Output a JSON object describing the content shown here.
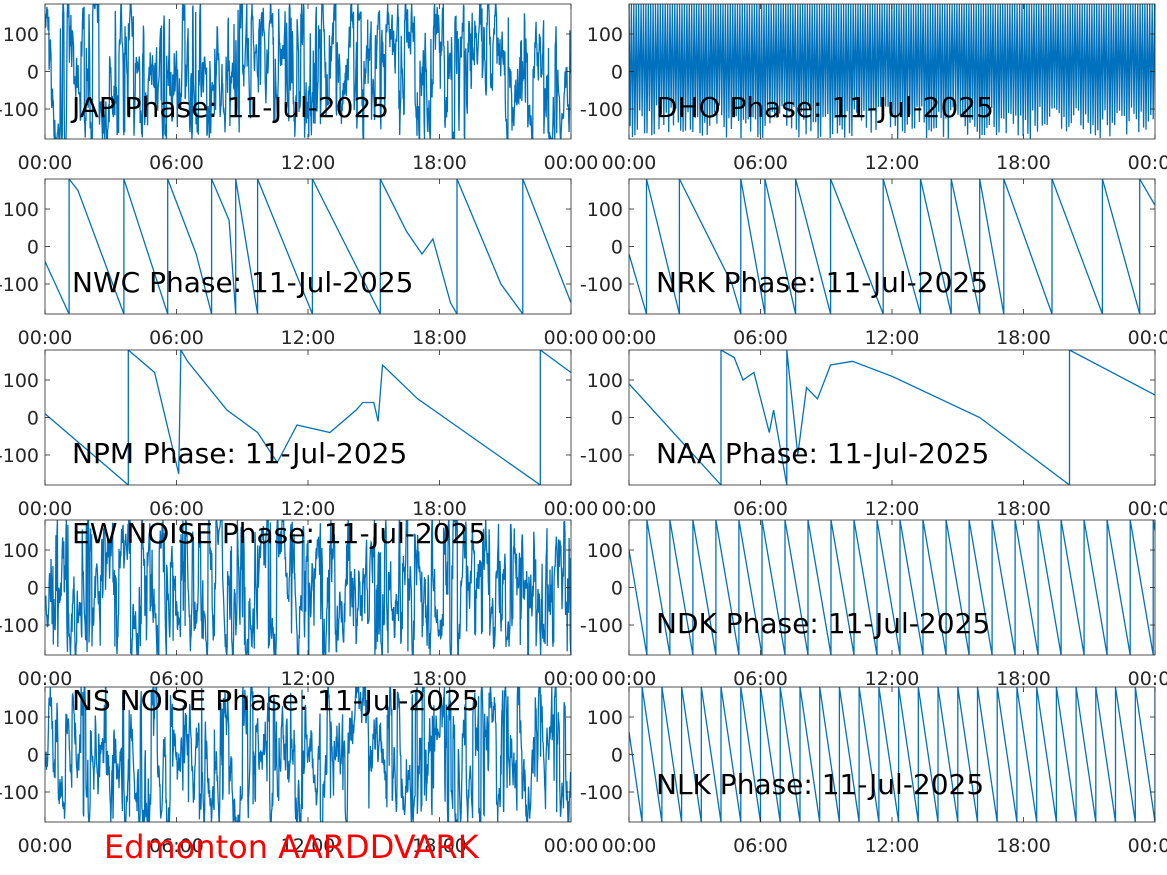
{
  "figure": {
    "footer_text": "Edmonton AARDDVARK",
    "footer_color": "#ff0000",
    "line_color": "#0072bd"
  },
  "chart_data": [
    {
      "type": "line",
      "title": "JAP Phase: 11-Jul-2025",
      "x_ticks": [
        "00:00",
        "06:00",
        "12:00",
        "18:00",
        "00:00"
      ],
      "y_ticks": [
        "100",
        "0",
        "-100"
      ],
      "ylim": [
        -180,
        180
      ],
      "xlim_hours": [
        0,
        24
      ],
      "pattern": "noise",
      "density": 1.0
    },
    {
      "type": "line",
      "title": "DHO Phase: 11-Jul-2025",
      "x_ticks": [
        "00:00",
        "06:00",
        "12:00",
        "18:00",
        "00:00"
      ],
      "y_ticks": [
        "100",
        "0",
        "-100"
      ],
      "ylim": [
        -180,
        180
      ],
      "xlim_hours": [
        0,
        24
      ],
      "pattern": "fast-wrap",
      "density": 1.0
    },
    {
      "type": "line",
      "title": "NWC Phase: 11-Jul-2025",
      "x_ticks": [
        "00:00",
        "06:00",
        "12:00",
        "18:00",
        "00:00"
      ],
      "y_ticks": [
        "100",
        "0",
        "-100"
      ],
      "ylim": [
        -180,
        180
      ],
      "xlim_hours": [
        0,
        24
      ],
      "points": [
        [
          0,
          -40
        ],
        [
          1.1,
          -180
        ],
        [
          1.1,
          180
        ],
        [
          1.5,
          150
        ],
        [
          3.6,
          -180
        ],
        [
          3.6,
          180
        ],
        [
          5.6,
          -180
        ],
        [
          5.6,
          180
        ],
        [
          6.9,
          -20
        ],
        [
          7.6,
          -180
        ],
        [
          7.6,
          180
        ],
        [
          8.4,
          70
        ],
        [
          8.7,
          -180
        ],
        [
          8.7,
          180
        ],
        [
          9.7,
          -180
        ],
        [
          9.7,
          180
        ],
        [
          12.2,
          -180
        ],
        [
          12.2,
          180
        ],
        [
          15.3,
          -180
        ],
        [
          15.3,
          180
        ],
        [
          16.5,
          40
        ],
        [
          17.2,
          -20
        ],
        [
          17.7,
          20
        ],
        [
          18.5,
          -150
        ],
        [
          18.8,
          -180
        ],
        [
          18.8,
          180
        ],
        [
          20.8,
          -100
        ],
        [
          21.8,
          -180
        ],
        [
          21.8,
          180
        ],
        [
          24,
          -150
        ]
      ]
    },
    {
      "type": "line",
      "title": "NRK Phase: 11-Jul-2025",
      "x_ticks": [
        "00:00",
        "06:00",
        "12:00",
        "18:00",
        "00:00"
      ],
      "y_ticks": [
        "100",
        "0",
        "-100"
      ],
      "ylim": [
        -180,
        180
      ],
      "xlim_hours": [
        0,
        24
      ],
      "points": [
        [
          0,
          -20
        ],
        [
          0.8,
          -180
        ],
        [
          0.8,
          180
        ],
        [
          2.3,
          -180
        ],
        [
          2.3,
          180
        ],
        [
          4.7,
          -100
        ],
        [
          5.1,
          -180
        ],
        [
          5.1,
          180
        ],
        [
          6.2,
          -180
        ],
        [
          6.2,
          180
        ],
        [
          7.6,
          -180
        ],
        [
          7.6,
          180
        ],
        [
          9.2,
          -180
        ],
        [
          9.2,
          180
        ],
        [
          11.6,
          -180
        ],
        [
          11.6,
          180
        ],
        [
          13.3,
          -180
        ],
        [
          13.3,
          180
        ],
        [
          14.7,
          -180
        ],
        [
          14.7,
          180
        ],
        [
          16.0,
          -180
        ],
        [
          16.0,
          180
        ],
        [
          17.1,
          -180
        ],
        [
          17.1,
          180
        ],
        [
          19.3,
          -180
        ],
        [
          19.3,
          180
        ],
        [
          21.6,
          -180
        ],
        [
          21.6,
          180
        ],
        [
          23.3,
          -180
        ],
        [
          23.3,
          180
        ],
        [
          24,
          110
        ]
      ]
    },
    {
      "type": "line",
      "title": "NPM Phase: 11-Jul-2025",
      "x_ticks": [
        "00:00",
        "06:00",
        "12:00",
        "18:00",
        "00:00"
      ],
      "y_ticks": [
        "100",
        "0",
        "-100"
      ],
      "ylim": [
        -180,
        180
      ],
      "xlim_hours": [
        0,
        24
      ],
      "points": [
        [
          0,
          10
        ],
        [
          3.8,
          -180
        ],
        [
          3.8,
          180
        ],
        [
          5,
          120
        ],
        [
          6.1,
          -150
        ],
        [
          6.2,
          180
        ],
        [
          6.5,
          150
        ],
        [
          8.3,
          20
        ],
        [
          9.7,
          -40
        ],
        [
          10.6,
          -120
        ],
        [
          11.5,
          -20
        ],
        [
          13,
          -40
        ],
        [
          14.2,
          20
        ],
        [
          14.5,
          40
        ],
        [
          15,
          40
        ],
        [
          15.2,
          -10
        ],
        [
          15.4,
          140
        ],
        [
          17,
          50
        ],
        [
          22.6,
          -180
        ],
        [
          22.6,
          180
        ],
        [
          24,
          120
        ]
      ]
    },
    {
      "type": "line",
      "title": "NAA Phase: 11-Jul-2025",
      "x_ticks": [
        "00:00",
        "06:00",
        "12:00",
        "18:00",
        "00:00"
      ],
      "y_ticks": [
        "100",
        "0",
        "-100"
      ],
      "ylim": [
        -180,
        180
      ],
      "xlim_hours": [
        0,
        24
      ],
      "points": [
        [
          0,
          90
        ],
        [
          4.2,
          -180
        ],
        [
          4.2,
          180
        ],
        [
          4.8,
          160
        ],
        [
          5.2,
          100
        ],
        [
          5.7,
          120
        ],
        [
          6.4,
          -40
        ],
        [
          6.6,
          20
        ],
        [
          7.2,
          -180
        ],
        [
          7.2,
          180
        ],
        [
          7.7,
          -100
        ],
        [
          8.1,
          80
        ],
        [
          8.6,
          50
        ],
        [
          9.2,
          140
        ],
        [
          10.2,
          150
        ],
        [
          12,
          110
        ],
        [
          16,
          0
        ],
        [
          20.1,
          -180
        ],
        [
          20.1,
          180
        ],
        [
          24,
          60
        ]
      ]
    },
    {
      "type": "line",
      "title": "EW NOISE Phase: 11-Jul-2025",
      "x_ticks": [
        "00:00",
        "06:00",
        "12:00",
        "18:00",
        "00:00"
      ],
      "y_ticks": [
        "100",
        "0",
        "-100"
      ],
      "ylim": [
        -180,
        180
      ],
      "xlim_hours": [
        0,
        24
      ],
      "pattern": "noise",
      "density": 1.0
    },
    {
      "type": "line",
      "title": "NDK Phase: 11-Jul-2025",
      "x_ticks": [
        "00:00",
        "06:00",
        "12:00",
        "18:00",
        "00:00"
      ],
      "y_ticks": [
        "100",
        "0",
        "-100"
      ],
      "ylim": [
        -180,
        180
      ],
      "xlim_hours": [
        0,
        24
      ],
      "pattern": "sawtooth",
      "period_hours": 1.05,
      "start": 100
    },
    {
      "type": "line",
      "title": "NS NOISE Phase: 11-Jul-2025",
      "x_ticks": [
        "00:00",
        "06:00",
        "12:00",
        "18:00",
        "00:00"
      ],
      "y_ticks": [
        "100",
        "0",
        "-100"
      ],
      "ylim": [
        -180,
        180
      ],
      "xlim_hours": [
        0,
        24
      ],
      "pattern": "noise",
      "density": 0.8
    },
    {
      "type": "line",
      "title": "NLK Phase: 11-Jul-2025",
      "x_ticks": [
        "00:00",
        "06:00",
        "12:00",
        "18:00",
        "00:00"
      ],
      "y_ticks": [
        "100",
        "0",
        "-100"
      ],
      "ylim": [
        -180,
        180
      ],
      "xlim_hours": [
        0,
        24
      ],
      "pattern": "sawtooth",
      "period_hours": 0.9,
      "start": 60
    }
  ]
}
